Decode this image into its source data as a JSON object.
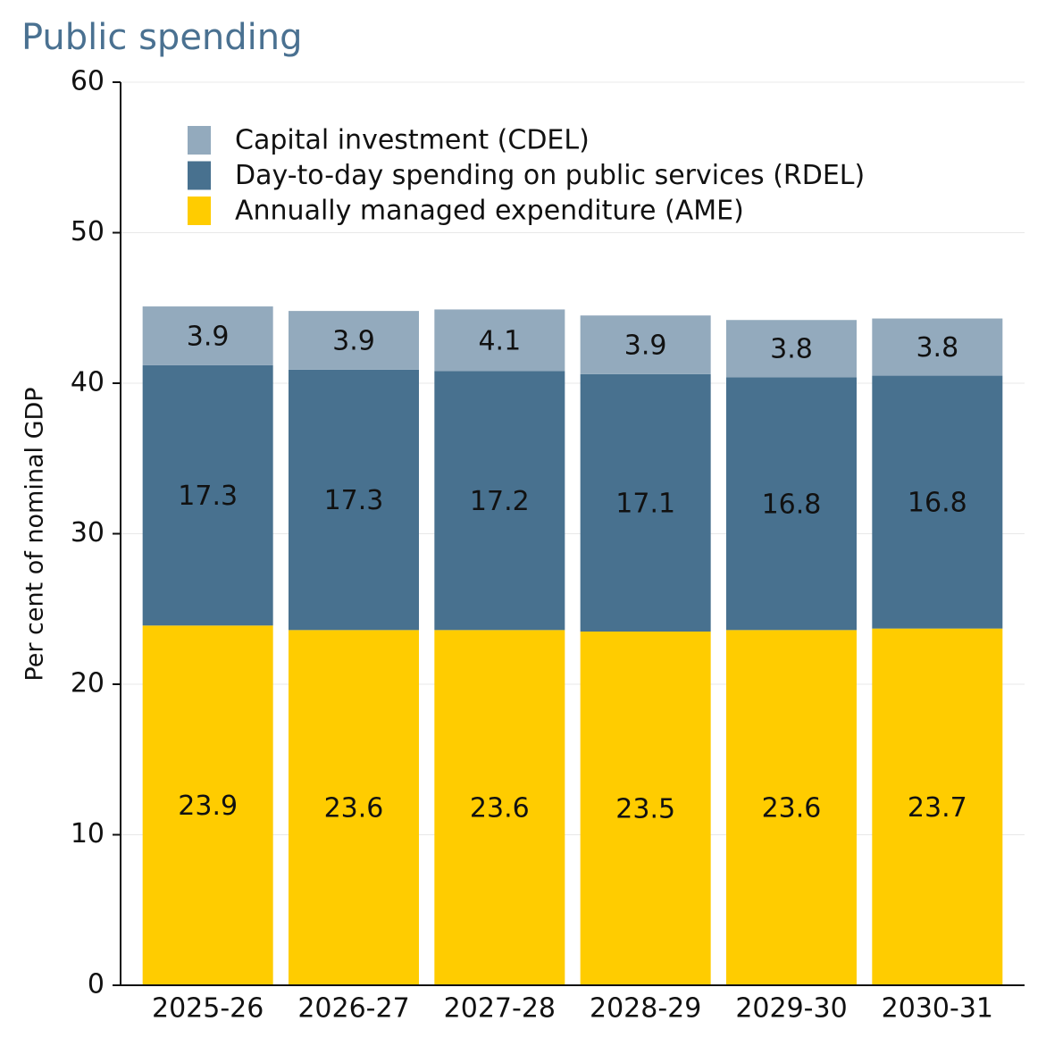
{
  "chart_data": {
    "type": "stacked_bar",
    "title": "Public spending",
    "y_label": "Per cent of nominal GDP",
    "categories": [
      "2025-26",
      "2026-27",
      "2027-28",
      "2028-29",
      "2029-30",
      "2030-31"
    ],
    "series": [
      {
        "name": "Annually managed expenditure (AME)",
        "color": "#ffcc00",
        "values": [
          23.9,
          23.6,
          23.6,
          23.5,
          23.6,
          23.7
        ]
      },
      {
        "name": "Day-to-day spending on public services (RDEL)",
        "color": "#48718f",
        "values": [
          17.3,
          17.3,
          17.2,
          17.1,
          16.8,
          16.8
        ]
      },
      {
        "name": "Capital investment (CDEL)",
        "color": "#93aabd",
        "values": [
          3.9,
          3.9,
          4.1,
          3.9,
          3.8,
          3.8
        ]
      }
    ],
    "ylim": [
      0,
      60
    ],
    "yticks": [
      0,
      10,
      20,
      30,
      40,
      50,
      60
    ],
    "grid": true
  }
}
